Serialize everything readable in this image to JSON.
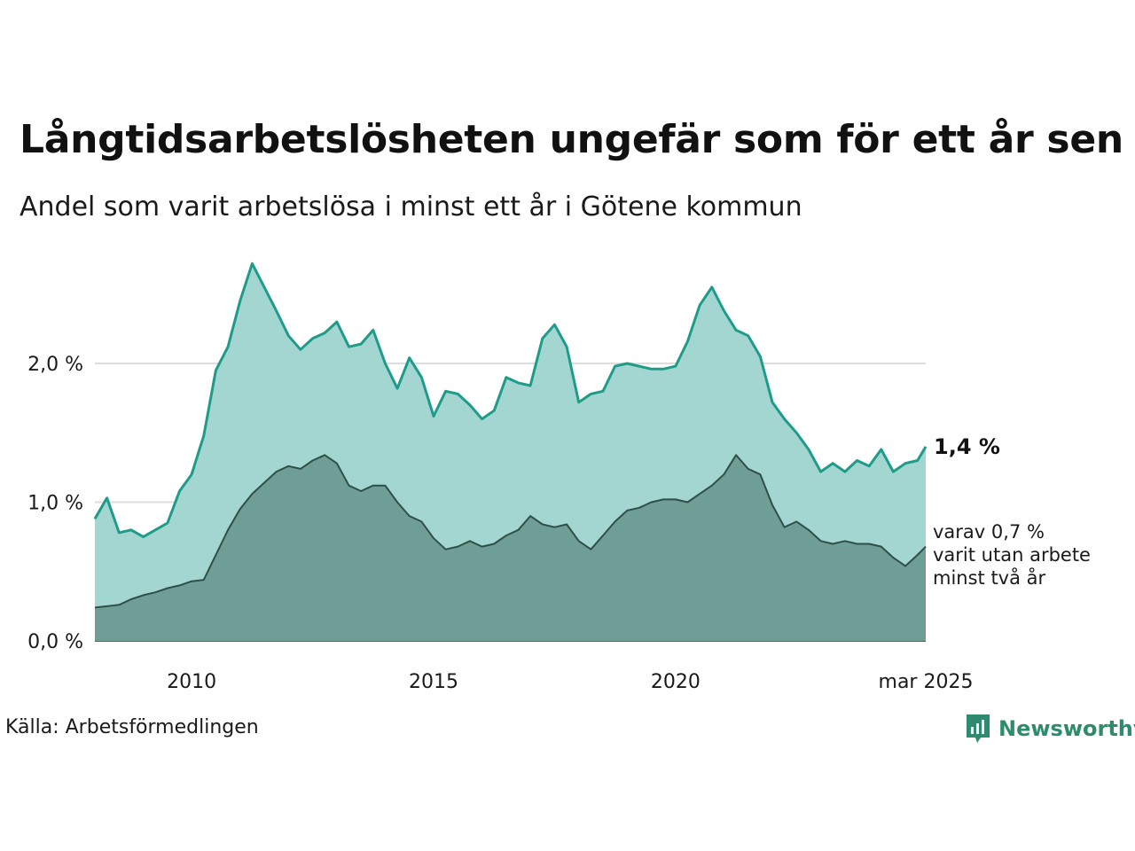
{
  "title": "Långtidsarbetslösheten ungefär som för ett år sen",
  "subtitle": "Andel som varit arbetslösa i minst ett år i Götene kommun",
  "source": "Källa: Arbetsförmedlingen",
  "brand": "Newsworthy",
  "colors": {
    "outer_fill": "#a3d6d0",
    "outer_line": "#1f9b8a",
    "inner_fill": "#6f9e97",
    "inner_line": "#2f4f48",
    "grid": "#dddddd",
    "brand": "#2e8b6e"
  },
  "chart_data": {
    "type": "area",
    "y_ticks": [
      "0,0 %",
      "1,0 %",
      "2,0 %"
    ],
    "y_tick_values": [
      0,
      1,
      2
    ],
    "x_ticks": [
      "2010",
      "2015",
      "2020",
      "mar 2025"
    ],
    "x_tick_values": [
      2010,
      2015,
      2020,
      2025.17
    ],
    "xlim": [
      2008.0,
      2025.17
    ],
    "ylim": [
      0,
      2.8
    ],
    "end_label_main": "1,4 %",
    "end_label_sub": [
      "varav 0,7 %",
      "varit utan arbete",
      "minst två år"
    ],
    "series": [
      {
        "x": [
          2008.0,
          2008.25,
          2008.5,
          2008.75,
          2009.0,
          2009.25,
          2009.5,
          2009.75,
          2010.0,
          2010.25,
          2010.5,
          2010.75,
          2011.0,
          2011.25,
          2011.5,
          2011.75,
          2012.0,
          2012.25,
          2012.5,
          2012.75,
          2013.0,
          2013.25,
          2013.5,
          2013.75,
          2014.0,
          2014.25,
          2014.5,
          2014.75,
          2015.0,
          2015.25,
          2015.5,
          2015.75,
          2016.0,
          2016.25,
          2016.5,
          2016.75,
          2017.0,
          2017.25,
          2017.5,
          2017.75,
          2018.0,
          2018.25,
          2018.5,
          2018.75,
          2019.0,
          2019.25,
          2019.5,
          2019.75,
          2020.0,
          2020.25,
          2020.5,
          2020.75,
          2021.0,
          2021.25,
          2021.5,
          2021.75,
          2022.0,
          2022.25,
          2022.5,
          2022.75,
          2023.0,
          2023.25,
          2023.5,
          2023.75,
          2024.0,
          2024.25,
          2024.5,
          2024.75,
          2025.0,
          2025.17
        ],
        "values": [
          0.88,
          1.03,
          0.78,
          0.8,
          0.75,
          0.8,
          0.85,
          1.08,
          1.2,
          1.48,
          1.95,
          2.12,
          2.45,
          2.72,
          2.55,
          2.38,
          2.2,
          2.1,
          2.18,
          2.22,
          2.3,
          2.12,
          2.14,
          2.24,
          2.0,
          1.82,
          2.04,
          1.9,
          1.62,
          1.8,
          1.78,
          1.7,
          1.6,
          1.66,
          1.9,
          1.86,
          1.84,
          2.18,
          2.28,
          2.12,
          1.72,
          1.78,
          1.8,
          1.98,
          2.0,
          1.98,
          1.96,
          1.96,
          1.98,
          2.16,
          2.42,
          2.55,
          2.38,
          2.24,
          2.2,
          2.05,
          1.72,
          1.6,
          1.5,
          1.38,
          1.22,
          1.28,
          1.22,
          1.3,
          1.26,
          1.38,
          1.22,
          1.28,
          1.3,
          1.4
        ]
      },
      {
        "x": [
          2008.0,
          2008.25,
          2008.5,
          2008.75,
          2009.0,
          2009.25,
          2009.5,
          2009.75,
          2010.0,
          2010.25,
          2010.5,
          2010.75,
          2011.0,
          2011.25,
          2011.5,
          2011.75,
          2012.0,
          2012.25,
          2012.5,
          2012.75,
          2013.0,
          2013.25,
          2013.5,
          2013.75,
          2014.0,
          2014.25,
          2014.5,
          2014.75,
          2015.0,
          2015.25,
          2015.5,
          2015.75,
          2016.0,
          2016.25,
          2016.5,
          2016.75,
          2017.0,
          2017.25,
          2017.5,
          2017.75,
          2018.0,
          2018.25,
          2018.5,
          2018.75,
          2019.0,
          2019.25,
          2019.5,
          2019.75,
          2020.0,
          2020.25,
          2020.5,
          2020.75,
          2021.0,
          2021.25,
          2021.5,
          2021.75,
          2022.0,
          2022.25,
          2022.5,
          2022.75,
          2023.0,
          2023.25,
          2023.5,
          2023.75,
          2024.0,
          2024.25,
          2024.5,
          2024.75,
          2025.0,
          2025.17
        ],
        "values": [
          0.24,
          0.25,
          0.26,
          0.3,
          0.33,
          0.35,
          0.38,
          0.4,
          0.43,
          0.44,
          0.62,
          0.8,
          0.95,
          1.06,
          1.14,
          1.22,
          1.26,
          1.24,
          1.3,
          1.34,
          1.28,
          1.12,
          1.08,
          1.12,
          1.12,
          1.0,
          0.9,
          0.86,
          0.74,
          0.66,
          0.68,
          0.72,
          0.68,
          0.7,
          0.76,
          0.8,
          0.9,
          0.84,
          0.82,
          0.84,
          0.72,
          0.66,
          0.76,
          0.86,
          0.94,
          0.96,
          1.0,
          1.02,
          1.02,
          1.0,
          1.06,
          1.12,
          1.2,
          1.34,
          1.24,
          1.2,
          0.98,
          0.82,
          0.86,
          0.8,
          0.72,
          0.7,
          0.72,
          0.7,
          0.7,
          0.68,
          0.6,
          0.54,
          0.62,
          0.68
        ]
      }
    ]
  }
}
